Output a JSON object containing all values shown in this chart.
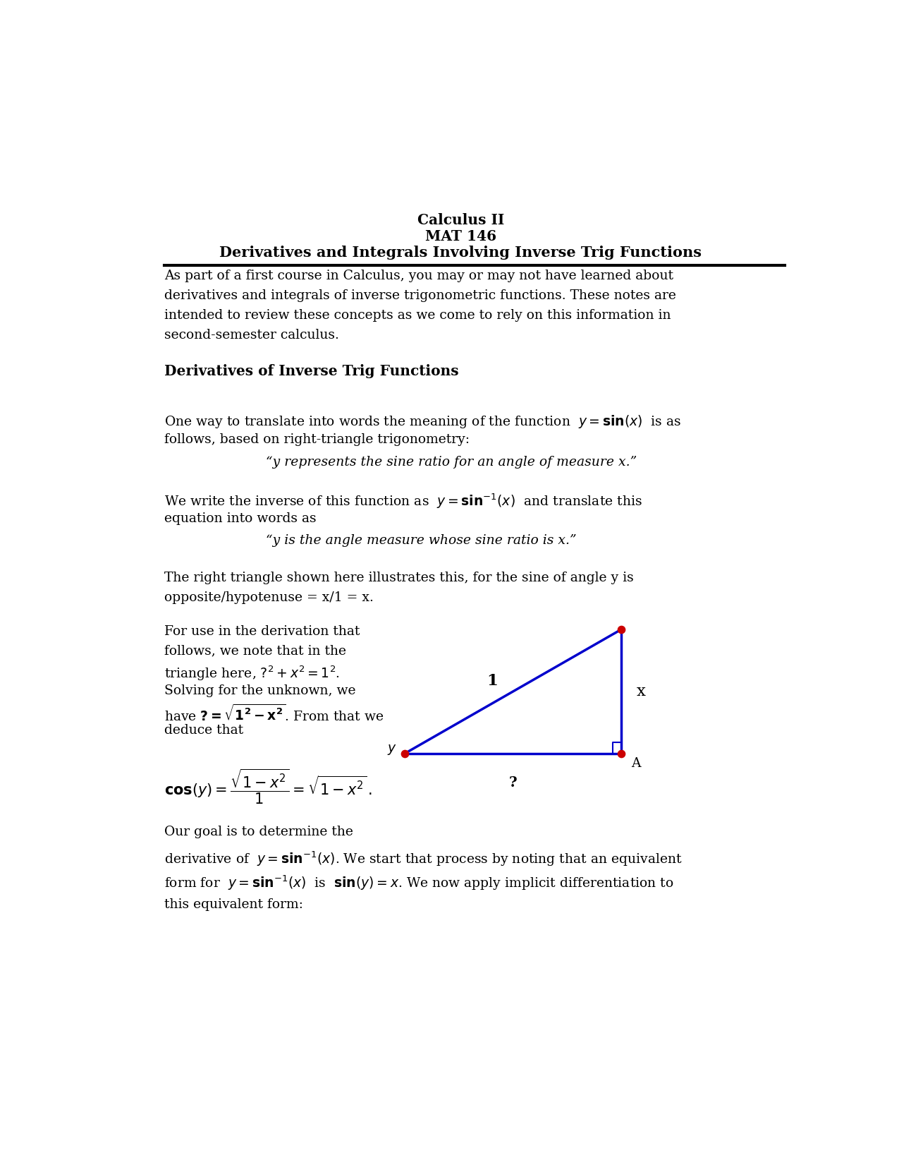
{
  "title_line1": "Calculus II",
  "title_line2": "MAT 146",
  "title_line3": "Derivatives and Integrals Involving Inverse Trig Functions",
  "bg_color": "#ffffff",
  "text_color": "#000000",
  "triangle_color": "#0000cc",
  "dot_color": "#cc0000",
  "lm": 0.075,
  "rm": 0.965,
  "fs_body": 13.5,
  "fs_title": 14.5,
  "fs_section": 14.5,
  "fs_math": 14.0
}
